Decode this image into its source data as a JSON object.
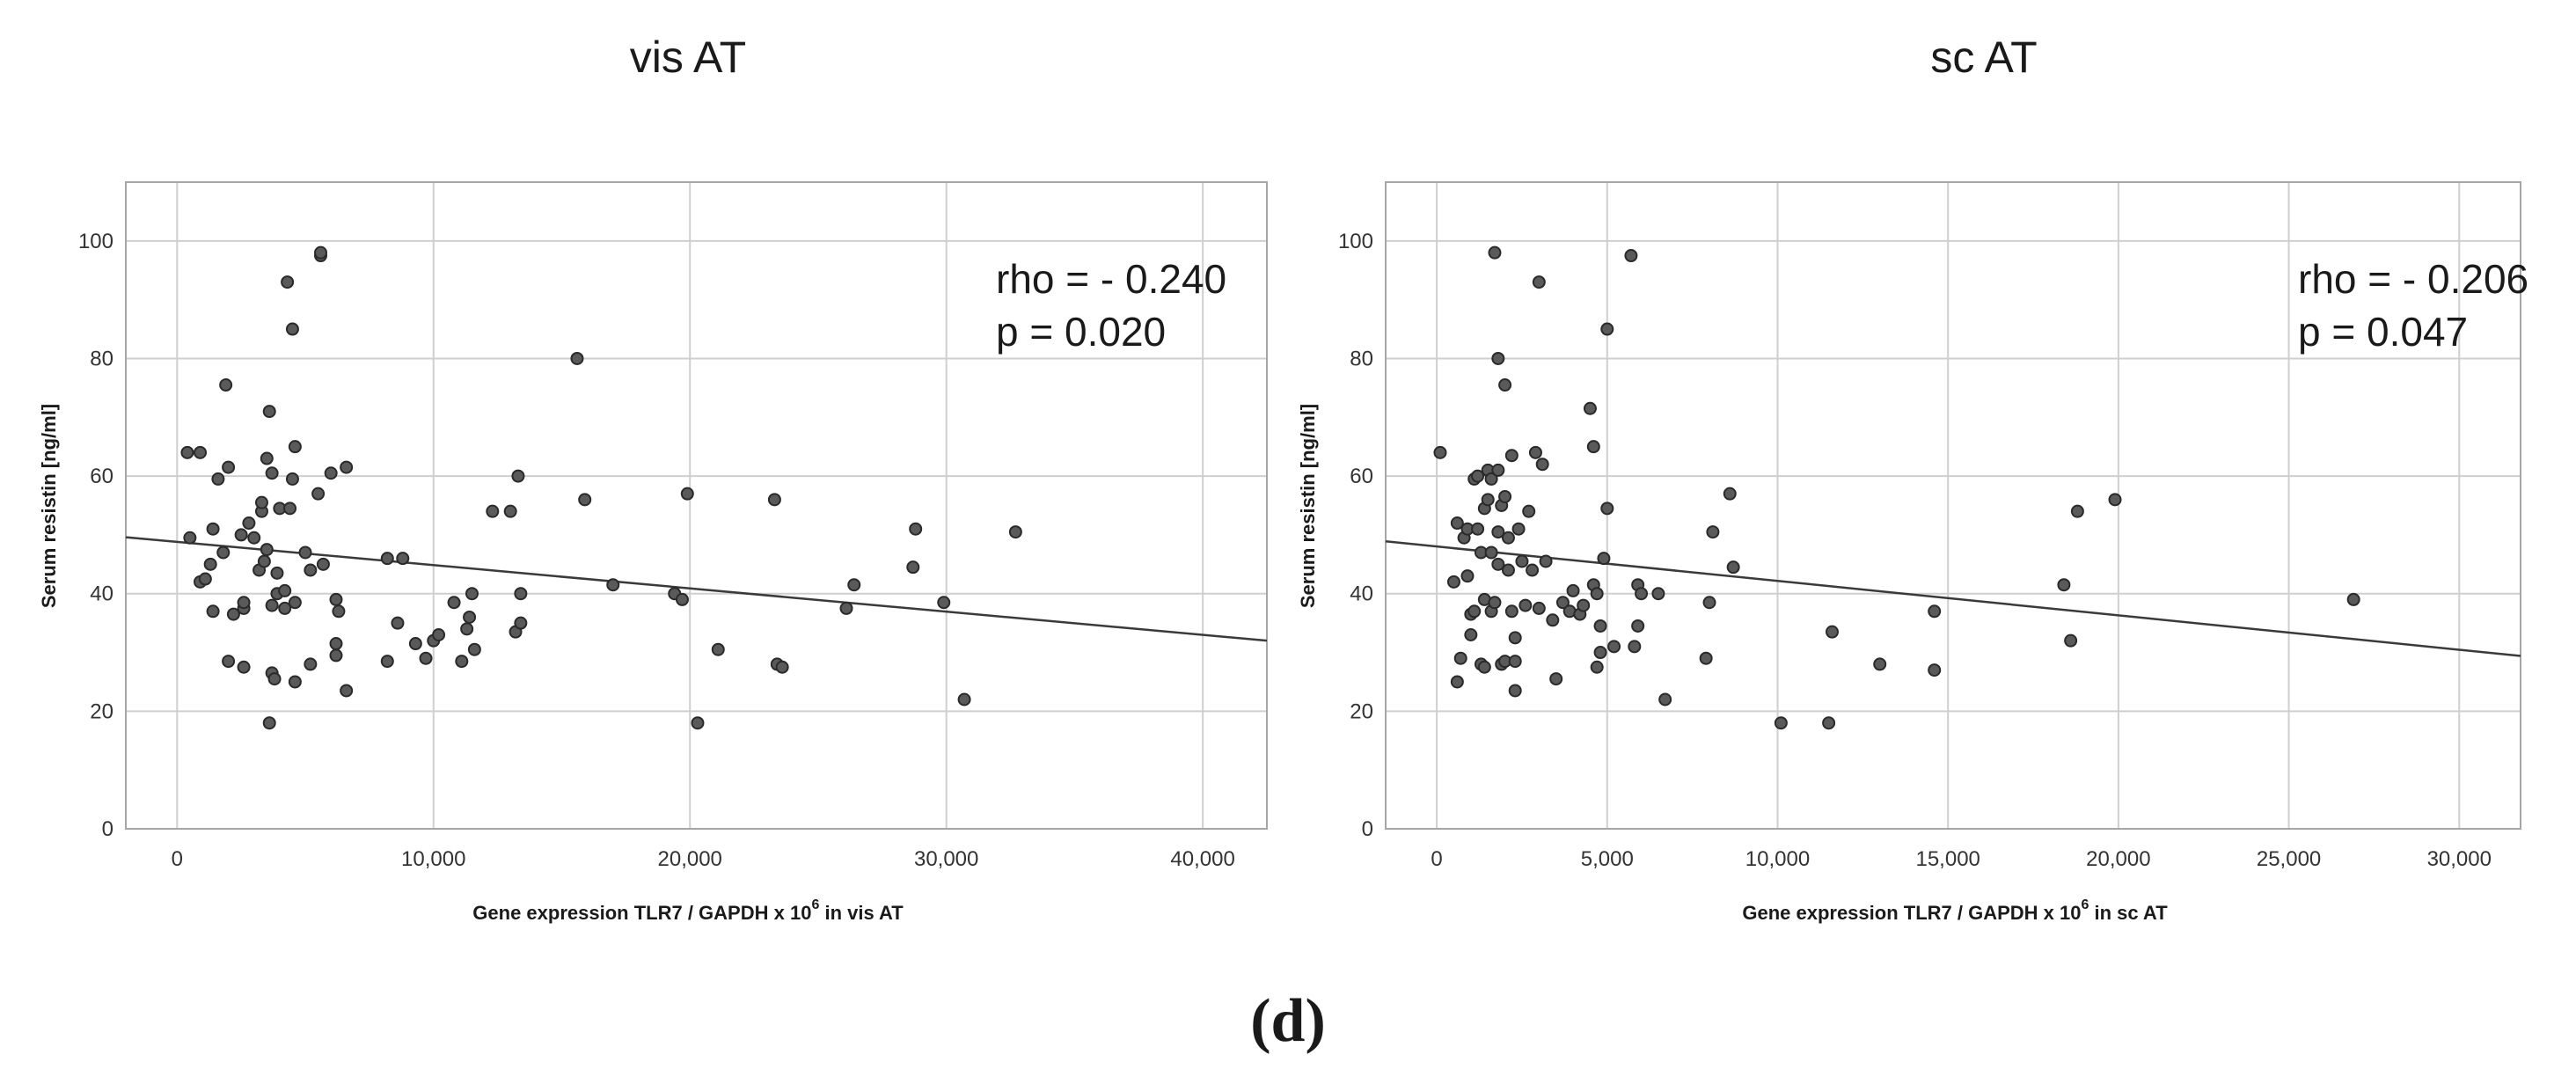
{
  "figure_label": "(d)",
  "chart_data": [
    {
      "type": "scatter",
      "title": "vis AT",
      "xlabel": "Gene expression TLR7 / GAPDH x 10",
      "xlabel_sup": "6",
      "xlabel_suffix": " in vis AT",
      "ylabel": "Serum resistin [ng/ml]",
      "xlim": [
        -2000,
        42500
      ],
      "ylim": [
        0,
        110
      ],
      "xticks": [
        0,
        10000,
        20000,
        30000,
        40000
      ],
      "xtick_labels": [
        "0",
        "10,000",
        "20,000",
        "30,000",
        "40,000"
      ],
      "yticks": [
        0,
        20,
        40,
        60,
        80,
        100
      ],
      "ytick_labels": [
        "0",
        "20",
        "40",
        "60",
        "80",
        "100"
      ],
      "grid": true,
      "annotation": [
        "rho = - 0.240",
        "p = 0.020"
      ],
      "fit_line": {
        "x": [
          -2000,
          42500
        ],
        "y": [
          49.6,
          32.0
        ]
      },
      "points": [
        [
          400,
          64
        ],
        [
          900,
          64
        ],
        [
          500,
          49.5
        ],
        [
          900,
          42
        ],
        [
          1100,
          42.5
        ],
        [
          1300,
          45
        ],
        [
          1400,
          51
        ],
        [
          1400,
          37
        ],
        [
          1600,
          59.5
        ],
        [
          1800,
          47
        ],
        [
          1900,
          75.5
        ],
        [
          2000,
          61.5
        ],
        [
          2000,
          28.5
        ],
        [
          2200,
          36.5
        ],
        [
          2500,
          50
        ],
        [
          2600,
          37.5
        ],
        [
          2600,
          38.5
        ],
        [
          2600,
          27.5
        ],
        [
          2800,
          52
        ],
        [
          3000,
          49.5
        ],
        [
          3200,
          44
        ],
        [
          3300,
          54
        ],
        [
          3300,
          55.5
        ],
        [
          3400,
          45.5
        ],
        [
          3500,
          47.5
        ],
        [
          3500,
          63
        ],
        [
          3600,
          71
        ],
        [
          3700,
          60.5
        ],
        [
          3700,
          38
        ],
        [
          3700,
          26.5
        ],
        [
          3800,
          25.5
        ],
        [
          3600,
          18
        ],
        [
          3900,
          40
        ],
        [
          3900,
          43.5
        ],
        [
          4000,
          54.5
        ],
        [
          4200,
          37.5
        ],
        [
          4200,
          40.5
        ],
        [
          4300,
          93
        ],
        [
          4400,
          54.5
        ],
        [
          4500,
          85
        ],
        [
          4500,
          59.5
        ],
        [
          4600,
          65
        ],
        [
          4600,
          38.5
        ],
        [
          4600,
          25
        ],
        [
          5000,
          47
        ],
        [
          5200,
          44
        ],
        [
          5200,
          28
        ],
        [
          5500,
          57
        ],
        [
          5600,
          97.5
        ],
        [
          5600,
          98
        ],
        [
          5700,
          45
        ],
        [
          6000,
          60.5
        ],
        [
          6200,
          31.5
        ],
        [
          6200,
          39
        ],
        [
          6300,
          37
        ],
        [
          6200,
          29.5
        ],
        [
          6600,
          61.5
        ],
        [
          6600,
          23.5
        ],
        [
          8200,
          46
        ],
        [
          8200,
          28.5
        ],
        [
          8600,
          35
        ],
        [
          8800,
          46
        ],
        [
          9300,
          31.5
        ],
        [
          9700,
          29
        ],
        [
          10000,
          32
        ],
        [
          10200,
          33
        ],
        [
          10800,
          38.5
        ],
        [
          11100,
          28.5
        ],
        [
          11400,
          36
        ],
        [
          11300,
          34
        ],
        [
          11500,
          40
        ],
        [
          11600,
          30.5
        ],
        [
          12300,
          54
        ],
        [
          13000,
          54
        ],
        [
          13200,
          33.5
        ],
        [
          13300,
          60
        ],
        [
          13400,
          35
        ],
        [
          13400,
          40
        ],
        [
          15600,
          80
        ],
        [
          15900,
          56
        ],
        [
          17000,
          41.5
        ],
        [
          19400,
          40
        ],
        [
          19700,
          39
        ],
        [
          19900,
          57
        ],
        [
          20300,
          18
        ],
        [
          21100,
          30.5
        ],
        [
          23300,
          56
        ],
        [
          23400,
          28
        ],
        [
          23600,
          27.5
        ],
        [
          26100,
          37.5
        ],
        [
          26400,
          41.5
        ],
        [
          28700,
          44.5
        ],
        [
          28800,
          51
        ],
        [
          29900,
          38.5
        ],
        [
          30700,
          22
        ],
        [
          32700,
          50.5
        ]
      ]
    },
    {
      "type": "scatter",
      "title": "sc AT",
      "xlabel": "Gene expression TLR7 / GAPDH x 10",
      "xlabel_sup": "6",
      "xlabel_suffix": " in sc AT",
      "ylabel": "Serum resistin [ng/ml]",
      "xlim": [
        -1500,
        31800
      ],
      "ylim": [
        0,
        110
      ],
      "xticks": [
        0,
        5000,
        10000,
        15000,
        20000,
        25000,
        30000
      ],
      "xtick_labels": [
        "0",
        "5,000",
        "10,000",
        "15,000",
        "20,000",
        "25,000",
        "30,000"
      ],
      "yticks": [
        0,
        20,
        40,
        60,
        80,
        100
      ],
      "ytick_labels": [
        "0",
        "20",
        "40",
        "60",
        "80",
        "100"
      ],
      "grid": true,
      "annotation": [
        "rho = - 0.206",
        "p = 0.047"
      ],
      "fit_line": {
        "x": [
          -1500,
          31800
        ],
        "y": [
          48.9,
          29.4
        ]
      },
      "points": [
        [
          100,
          64
        ],
        [
          500,
          42
        ],
        [
          600,
          25
        ],
        [
          600,
          52
        ],
        [
          700,
          29
        ],
        [
          800,
          49.5
        ],
        [
          900,
          51
        ],
        [
          900,
          43
        ],
        [
          1000,
          36.5
        ],
        [
          1000,
          33
        ],
        [
          1100,
          37
        ],
        [
          1100,
          59.5
        ],
        [
          1200,
          60
        ],
        [
          1200,
          51
        ],
        [
          1300,
          47
        ],
        [
          1300,
          28
        ],
        [
          1400,
          27.5
        ],
        [
          1400,
          39
        ],
        [
          1400,
          54.5
        ],
        [
          1500,
          61
        ],
        [
          1500,
          56
        ],
        [
          1600,
          47
        ],
        [
          1600,
          37
        ],
        [
          1600,
          59.5
        ],
        [
          1700,
          98
        ],
        [
          1700,
          38.5
        ],
        [
          1800,
          80
        ],
        [
          1800,
          45
        ],
        [
          1800,
          50.5
        ],
        [
          1800,
          61
        ],
        [
          1900,
          55
        ],
        [
          1900,
          28
        ],
        [
          2000,
          75.5
        ],
        [
          2000,
          56.5
        ],
        [
          2000,
          28.5
        ],
        [
          2100,
          44
        ],
        [
          2100,
          49.5
        ],
        [
          2200,
          37
        ],
        [
          2200,
          63.5
        ],
        [
          2300,
          32.5
        ],
        [
          2300,
          28.5
        ],
        [
          2300,
          23.5
        ],
        [
          2400,
          51
        ],
        [
          2500,
          45.5
        ],
        [
          2600,
          38
        ],
        [
          2700,
          54
        ],
        [
          2800,
          44
        ],
        [
          2900,
          64
        ],
        [
          3000,
          93
        ],
        [
          3000,
          37.5
        ],
        [
          3100,
          62
        ],
        [
          3200,
          45.5
        ],
        [
          3400,
          35.5
        ],
        [
          3500,
          25.5
        ],
        [
          3700,
          38.5
        ],
        [
          3900,
          37
        ],
        [
          4000,
          40.5
        ],
        [
          4200,
          36.5
        ],
        [
          4300,
          38
        ],
        [
          4500,
          71.5
        ],
        [
          4600,
          41.5
        ],
        [
          4600,
          65
        ],
        [
          4700,
          40
        ],
        [
          4700,
          27.5
        ],
        [
          4800,
          34.5
        ],
        [
          4800,
          30
        ],
        [
          4900,
          46
        ],
        [
          5000,
          85
        ],
        [
          5000,
          54.5
        ],
        [
          5200,
          31
        ],
        [
          5700,
          97.5
        ],
        [
          5800,
          31
        ],
        [
          5900,
          34.5
        ],
        [
          5900,
          41.5
        ],
        [
          6000,
          40
        ],
        [
          6500,
          40
        ],
        [
          6700,
          22
        ],
        [
          7900,
          29
        ],
        [
          8000,
          38.5
        ],
        [
          8100,
          50.5
        ],
        [
          8600,
          57
        ],
        [
          8700,
          44.5
        ],
        [
          10100,
          18
        ],
        [
          11500,
          18
        ],
        [
          11600,
          33.5
        ],
        [
          13000,
          28
        ],
        [
          14600,
          37
        ],
        [
          14600,
          27
        ],
        [
          18400,
          41.5
        ],
        [
          18600,
          32
        ],
        [
          18800,
          54
        ],
        [
          19900,
          56
        ],
        [
          26900,
          39
        ]
      ]
    }
  ]
}
